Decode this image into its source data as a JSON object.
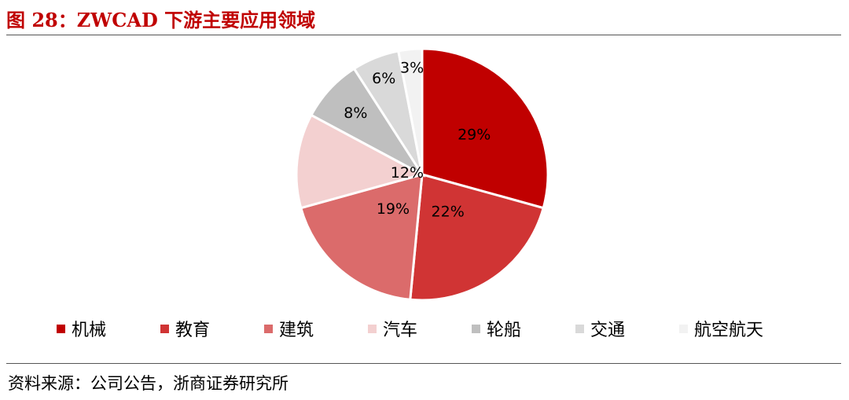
{
  "title": "图 28：ZWCAD 下游主要应用领域",
  "source": "资料来源：公司公告，浙商证券研究所",
  "chart_data": {
    "type": "pie",
    "title": "",
    "start_angle_deg": 0,
    "direction": "clockwise",
    "legend_position": "bottom",
    "slices": [
      {
        "label": "机械",
        "value": 29,
        "display": "29%",
        "color": "#c00000"
      },
      {
        "label": "教育",
        "value": 22,
        "display": "22%",
        "color": "#d03434"
      },
      {
        "label": "建筑",
        "value": 19,
        "display": "19%",
        "color": "#db6b6b"
      },
      {
        "label": "汽车",
        "value": 12,
        "display": "12%",
        "color": "#f3d0d0"
      },
      {
        "label": "轮船",
        "value": 8,
        "display": "8%",
        "color": "#bfbfbf"
      },
      {
        "label": "交通",
        "value": 6,
        "display": "6%",
        "color": "#d9d9d9"
      },
      {
        "label": "航空航天",
        "value": 3,
        "display": "3%",
        "color": "#f2f2f2"
      }
    ]
  }
}
